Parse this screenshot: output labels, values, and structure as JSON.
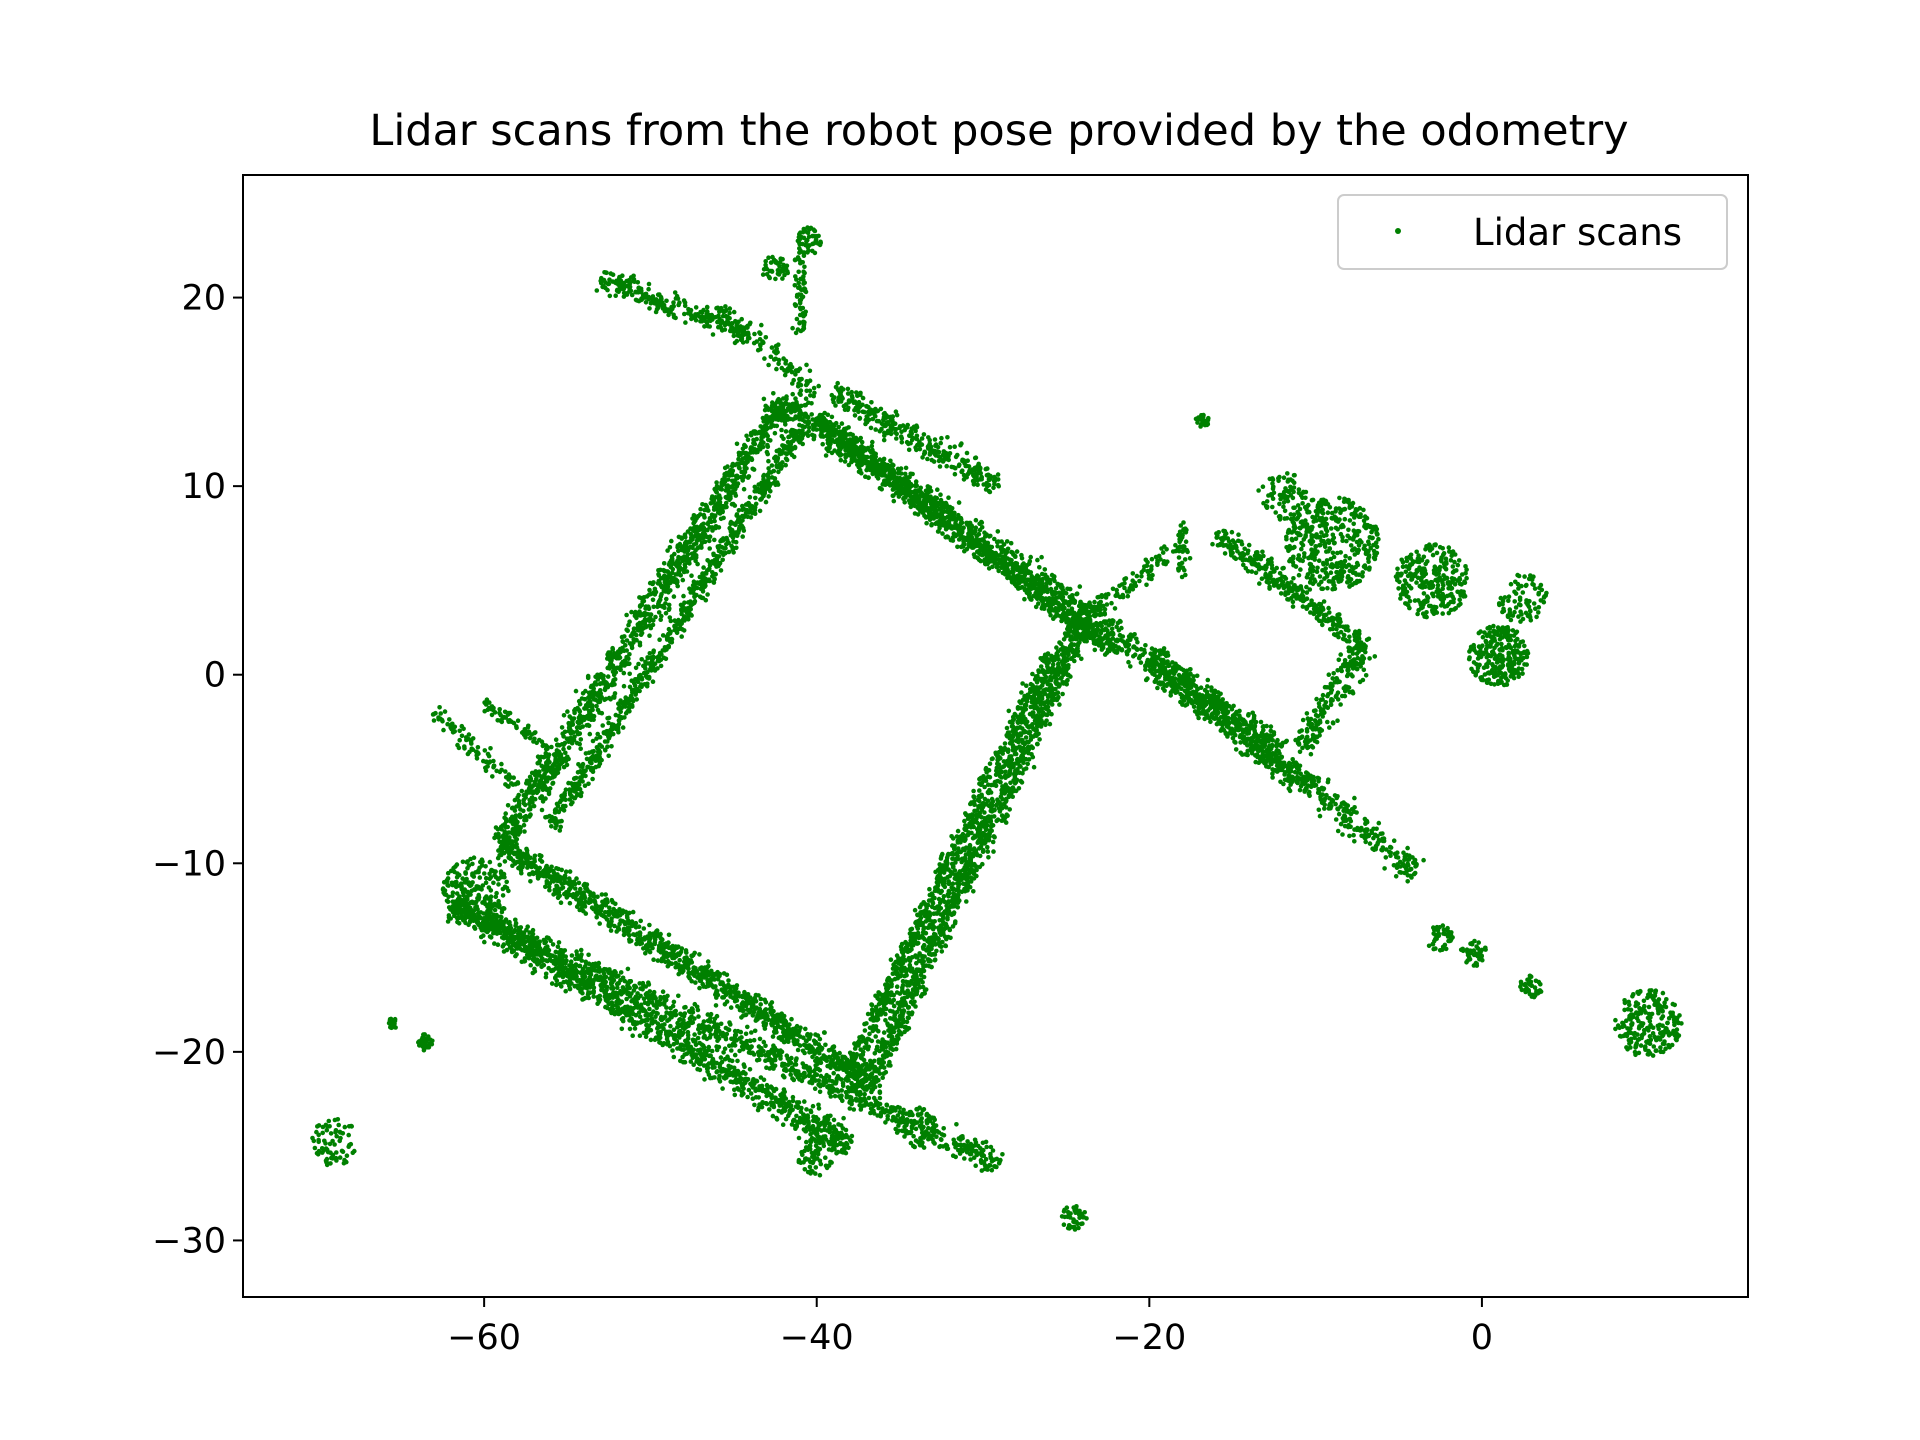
{
  "chart_data": {
    "type": "scatter",
    "title": "Lidar scans from the robot pose provided by the odometry",
    "xlabel": "",
    "ylabel": "",
    "xlim": [
      -74.5,
      16
    ],
    "ylim": [
      -33,
      26.5
    ],
    "xticks": [
      -60,
      -40,
      -20,
      0
    ],
    "xtick_labels": [
      "−60",
      "−40",
      "−20",
      "0"
    ],
    "yticks": [
      -30,
      -20,
      -10,
      0,
      10,
      20
    ],
    "ytick_labels": [
      "−30",
      "−20",
      "−10",
      "0",
      "10",
      "20"
    ],
    "grid": false,
    "legend_position": "top-right",
    "series": [
      {
        "name": "Lidar scans",
        "color": "#008000",
        "marker": "dot",
        "note_on_shape": "dense point cloud tracing rectangular corridors; representative traced segments and clusters",
        "segments": [
          {
            "from": [
              -42,
              14.5
            ],
            "to": [
              -22,
              2
            ],
            "spread": 1.2,
            "weight": 3
          },
          {
            "from": [
              -40,
              13.5
            ],
            "to": [
              -22,
              1
            ],
            "spread": 0.8,
            "weight": 2
          },
          {
            "from": [
              -22,
              2
            ],
            "to": [
              -12,
              -4
            ],
            "spread": 1.0,
            "weight": 2
          },
          {
            "from": [
              -20,
              1
            ],
            "to": [
              -4,
              -10.5
            ],
            "spread": 1.2,
            "weight": 2
          },
          {
            "from": [
              -20,
              0
            ],
            "to": [
              -10,
              -6
            ],
            "spread": 0.8,
            "weight": 1
          },
          {
            "from": [
              -42,
              14.5
            ],
            "to": [
              -59,
              -9
            ],
            "spread": 1.2,
            "weight": 3
          },
          {
            "from": [
              -41,
              13
            ],
            "to": [
              -56,
              -8
            ],
            "spread": 0.8,
            "weight": 2
          },
          {
            "from": [
              -59,
              -9
            ],
            "to": [
              -37,
              -21.5
            ],
            "spread": 1.0,
            "weight": 3
          },
          {
            "from": [
              -62,
              -12
            ],
            "to": [
              -38,
              -25
            ],
            "spread": 1.2,
            "weight": 3
          },
          {
            "from": [
              -60,
              -13
            ],
            "to": [
              -29,
              -26
            ],
            "spread": 1.0,
            "weight": 2
          },
          {
            "from": [
              -37,
              -22
            ],
            "to": [
              -24,
              3
            ],
            "spread": 1.1,
            "weight": 3
          },
          {
            "from": [
              -38,
              -21
            ],
            "to": [
              -26,
              1
            ],
            "spread": 0.8,
            "weight": 2
          },
          {
            "from": [
              -39,
              15
            ],
            "to": [
              -29,
              10
            ],
            "spread": 1.0,
            "weight": 2
          },
          {
            "from": [
              -53,
              21
            ],
            "to": [
              -44,
              18
            ],
            "spread": 0.9,
            "weight": 2
          },
          {
            "from": [
              -46,
              19.5
            ],
            "to": [
              -40,
              15
            ],
            "spread": 0.8,
            "weight": 1
          },
          {
            "from": [
              -58,
              -6
            ],
            "to": [
              -63,
              -2
            ],
            "spread": 0.6,
            "weight": 1
          },
          {
            "from": [
              -56,
              -4
            ],
            "to": [
              -60,
              -1.5
            ],
            "spread": 0.4,
            "weight": 1
          },
          {
            "from": [
              -24,
              3
            ],
            "to": [
              -18,
              7
            ],
            "spread": 0.8,
            "weight": 1
          },
          {
            "from": [
              -16,
              7.5
            ],
            "to": [
              -7,
              1.5
            ],
            "spread": 0.9,
            "weight": 2
          },
          {
            "from": [
              -18,
              8
            ],
            "to": [
              -18,
              5
            ],
            "spread": 0.6,
            "weight": 1
          },
          {
            "from": [
              -7,
              1.5
            ],
            "to": [
              -11,
              -4
            ],
            "spread": 1.2,
            "weight": 2
          },
          {
            "from": [
              -41,
              18
            ],
            "to": [
              -41,
              23
            ],
            "spread": 0.6,
            "weight": 1
          }
        ],
        "clusters": [
          {
            "center": [
              -9,
              7
            ],
            "radius": 2.8,
            "weight": 2
          },
          {
            "center": [
              -3,
              5
            ],
            "radius": 2.2,
            "weight": 2
          },
          {
            "center": [
              1,
              1
            ],
            "radius": 1.8,
            "weight": 3
          },
          {
            "center": [
              2.5,
              4
            ],
            "radius": 1.5,
            "weight": 1
          },
          {
            "center": [
              -12,
              9.5
            ],
            "radius": 1.5,
            "weight": 1
          },
          {
            "center": [
              -60.5,
              -11.5
            ],
            "radius": 2.0,
            "weight": 2
          },
          {
            "center": [
              -69,
              -24.8
            ],
            "radius": 1.4,
            "weight": 1
          },
          {
            "center": [
              -63.5,
              -19.5
            ],
            "radius": 0.5,
            "weight": 1
          },
          {
            "center": [
              -65.5,
              -18.5
            ],
            "radius": 0.3,
            "weight": 1
          },
          {
            "center": [
              -24.5,
              -28.8
            ],
            "radius": 0.8,
            "weight": 1
          },
          {
            "center": [
              -2.5,
              -14
            ],
            "radius": 0.8,
            "weight": 1
          },
          {
            "center": [
              -0.5,
              -14.8
            ],
            "radius": 0.8,
            "weight": 1
          },
          {
            "center": [
              3,
              -16.5
            ],
            "radius": 0.7,
            "weight": 1
          },
          {
            "center": [
              10,
              -18.5
            ],
            "radius": 2.0,
            "weight": 2
          },
          {
            "center": [
              -40.5,
              23
            ],
            "radius": 0.8,
            "weight": 1
          },
          {
            "center": [
              -42.5,
              21.5
            ],
            "radius": 0.8,
            "weight": 1
          },
          {
            "center": [
              -16.8,
              13.5
            ],
            "radius": 0.4,
            "weight": 1
          },
          {
            "center": [
              -34,
              -24
            ],
            "radius": 1.2,
            "weight": 1
          },
          {
            "center": [
              -40,
              -25.5
            ],
            "radius": 1.2,
            "weight": 1
          }
        ]
      }
    ]
  }
}
